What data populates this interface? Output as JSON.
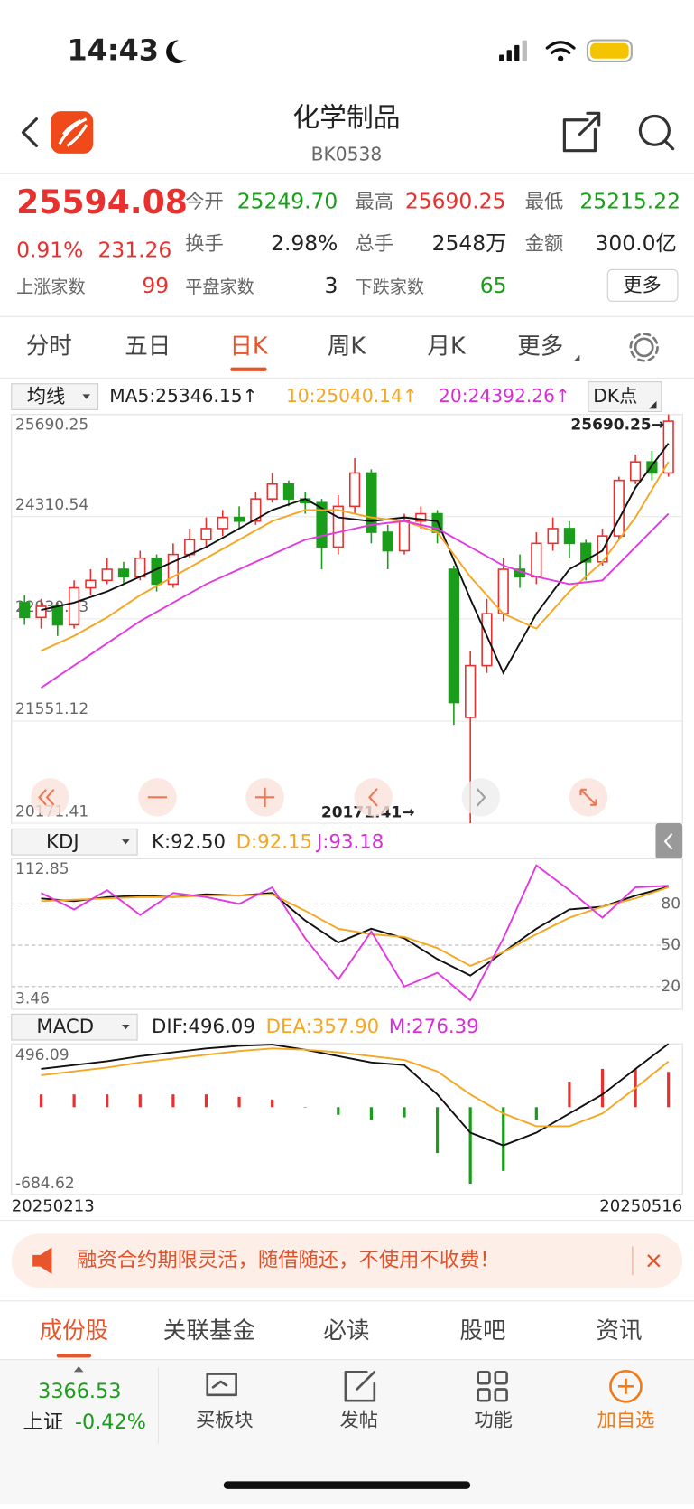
{
  "status": {
    "time": "14:43"
  },
  "header": {
    "title": "化学制品",
    "code": "BK0538"
  },
  "quote": {
    "price": "25594.08",
    "change_pct": "0.91%",
    "change": "231.26"
  },
  "stats": {
    "open": {
      "label": "今开",
      "value": "25249.70"
    },
    "high": {
      "label": "最高",
      "value": "25690.25"
    },
    "low": {
      "label": "最低",
      "value": "25215.22"
    },
    "turnover": {
      "label": "换手",
      "value": "2.98%"
    },
    "volume": {
      "label": "总手",
      "value": "2548万"
    },
    "amount": {
      "label": "金额",
      "value": "300.0亿"
    },
    "up": {
      "label": "上涨家数",
      "value": "99"
    },
    "flat": {
      "label": "平盘家数",
      "value": "3"
    },
    "down": {
      "label": "下跌家数",
      "value": "65"
    },
    "more": "更多"
  },
  "tabs": {
    "items": [
      "分时",
      "五日",
      "日K",
      "周K",
      "月K",
      "更多"
    ],
    "active": 2
  },
  "chart_data": [
    {
      "type": "candlestick",
      "indicator": "均线",
      "button": "DK点",
      "legend": [
        "MA5:25346.15↑",
        "10:25040.14↑",
        "20:24392.26↑"
      ],
      "annotations": [
        "25690.25→",
        "20171.41→"
      ],
      "ylim": [
        20171.41,
        25690.25
      ],
      "yticks": [
        20171.41,
        21551.12,
        22930.83,
        24310.54,
        25690.25
      ],
      "up_color": "#e8312f",
      "down_color": "#1a9d1a",
      "open": [
        23150,
        22950,
        23100,
        22850,
        23350,
        23450,
        23600,
        23500,
        23750,
        23400,
        23800,
        24000,
        24150,
        24300,
        24250,
        24550,
        24750,
        24550,
        24500,
        23900,
        24450,
        24900,
        24100,
        23850,
        24250,
        24350,
        23600,
        21600,
        22300,
        23000,
        23600,
        23500,
        23950,
        24150,
        23950,
        23700,
        24050,
        24800,
        25050,
        24900
      ],
      "close": [
        22950,
        23100,
        22850,
        23350,
        23450,
        23600,
        23500,
        23750,
        23400,
        23800,
        24000,
        24150,
        24300,
        24250,
        24550,
        24750,
        24550,
        24500,
        23900,
        24450,
        24900,
        24100,
        23850,
        24250,
        24350,
        24100,
        21800,
        22300,
        23000,
        23600,
        23500,
        23950,
        24150,
        23950,
        23700,
        24050,
        24800,
        25050,
        24900,
        25600
      ],
      "high": [
        23250,
        23200,
        23150,
        23450,
        23600,
        23750,
        23700,
        23850,
        23800,
        23950,
        24150,
        24300,
        24400,
        24450,
        24650,
        24900,
        24800,
        24650,
        24550,
        24600,
        25100,
        24950,
        24200,
        24350,
        24450,
        24400,
        23650,
        22500,
        23200,
        23750,
        23800,
        24100,
        24300,
        24250,
        24000,
        24150,
        24850,
        25150,
        25200,
        25690.25
      ],
      "low": [
        22850,
        22800,
        22700,
        22800,
        23250,
        23400,
        23400,
        23450,
        23300,
        23350,
        23750,
        23900,
        24050,
        24150,
        24200,
        24500,
        24450,
        24350,
        23600,
        23800,
        24350,
        23950,
        23600,
        23800,
        24150,
        23950,
        21500,
        20171.41,
        22200,
        22900,
        23350,
        23400,
        23850,
        23750,
        23450,
        23650,
        24000,
        24750,
        24800,
        24850
      ],
      "series": [
        {
          "color": "#111111",
          "values": [
            23050,
            23150,
            23300,
            23500,
            23700,
            23900,
            24150,
            24400,
            24550,
            24300,
            24250,
            24300,
            24250,
            23200,
            22200,
            23000,
            23600,
            23850,
            24700,
            25300
          ]
        },
        {
          "color": "#f5a623",
          "values": [
            22500,
            22700,
            22950,
            23250,
            23500,
            23750,
            24000,
            24250,
            24400,
            24400,
            24300,
            24250,
            24100,
            23500,
            23000,
            22800,
            23300,
            23700,
            24300,
            25050
          ]
        },
        {
          "color": "#e03ae0",
          "values": [
            22000,
            22300,
            22600,
            22900,
            23150,
            23400,
            23600,
            23800,
            24000,
            24100,
            24200,
            24250,
            24150,
            23900,
            23650,
            23500,
            23400,
            23450,
            23900,
            24350
          ]
        }
      ]
    },
    {
      "type": "line",
      "indicator": "KDJ",
      "legend": [
        "K:92.50",
        "D:92.15",
        "J:93.18"
      ],
      "ylim": [
        3.46,
        112.85
      ],
      "yticks": [
        20,
        50,
        80
      ],
      "series": [
        {
          "color": "#111111",
          "values": [
            84,
            82,
            85,
            86,
            85,
            87,
            86,
            88,
            68,
            52,
            62,
            55,
            40,
            28,
            45,
            62,
            76,
            78,
            86,
            92.5
          ]
        },
        {
          "color": "#f5a623",
          "values": [
            82,
            83,
            84,
            85,
            85,
            86,
            86,
            87,
            75,
            62,
            58,
            56,
            48,
            35,
            45,
            58,
            70,
            78,
            84,
            92.15
          ]
        },
        {
          "color": "#e03ae0",
          "values": [
            88,
            76,
            90,
            72,
            88,
            85,
            80,
            92,
            55,
            25,
            60,
            20,
            30,
            10,
            55,
            108,
            90,
            70,
            92,
            93.18
          ]
        }
      ]
    },
    {
      "type": "macd",
      "indicator": "MACD",
      "legend": [
        "DIF:496.09",
        "DEA:357.90",
        "M:276.39"
      ],
      "ylim": [
        -684.62,
        496.09
      ],
      "up_color": "#e8312f",
      "down_color": "#1a9d1a",
      "bars": [
        100,
        100,
        100,
        100,
        100,
        100,
        80,
        60,
        0,
        -60,
        -100,
        -80,
        -360,
        -600,
        -500,
        -100,
        200,
        300,
        300,
        276.39
      ],
      "series": [
        {
          "color": "#111111",
          "values": [
            300,
            330,
            360,
            400,
            430,
            460,
            480,
            490,
            450,
            400,
            350,
            330,
            100,
            -200,
            -300,
            -200,
            -50,
            100,
            300,
            496.09
          ]
        },
        {
          "color": "#f5a623",
          "values": [
            250,
            280,
            310,
            350,
            380,
            410,
            440,
            460,
            450,
            430,
            400,
            370,
            280,
            100,
            -50,
            -150,
            -150,
            -50,
            150,
            357.9
          ]
        }
      ]
    }
  ],
  "dates": [
    "20250213",
    "20250516"
  ],
  "banner": "融资合约期限灵活，随借随还，不使用不收费！",
  "bottom_tabs": {
    "items": [
      "成份股",
      "关联基金",
      "必读",
      "股吧",
      "资讯"
    ],
    "active": 0
  },
  "footer": {
    "index_value": "3366.53",
    "index_name": "上证",
    "index_change": "-0.42%",
    "buttons": [
      "买板块",
      "发帖",
      "功能",
      "加自选"
    ]
  }
}
